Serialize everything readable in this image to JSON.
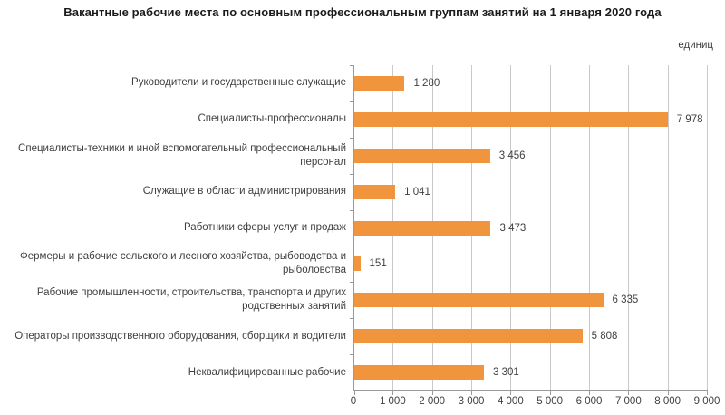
{
  "title": "Вакантные рабочие места по основным профессиональным группам занятий на 1 января 2020 года",
  "units_label": "единиц",
  "colors": {
    "bar": "#F0943D",
    "grid": "#C9C9C9",
    "axis": "#9A9A9A",
    "text": "#3F3F3F",
    "title": "#1A1A1A",
    "background": "#FFFFFF"
  },
  "chart_data": {
    "type": "bar",
    "orientation": "horizontal",
    "title": "Вакантные рабочие места по основным профессиональным группам занятий на 1 января 2020 года",
    "units": "единиц",
    "categories": [
      "Руководители и государственные служащие",
      "Специалисты-профессионалы",
      "Специалисты-техники и иной вспомогательный профессиональный персонал",
      "Служащие в области администрирования",
      "Работники сферы услуг и продаж",
      "Фермеры и рабочие сельского и лесного хозяйства, рыбоводства и рыболовства",
      "Рабочие промышленности, строительства, транспорта и других родственных занятий",
      "Операторы производственного оборудования, сборщики и водители",
      "Неквалифицированные рабочие"
    ],
    "values": [
      1280,
      7978,
      3456,
      1041,
      3473,
      151,
      6335,
      5808,
      3301
    ],
    "value_labels": [
      "1 280",
      "7 978",
      "3 456",
      "1 041",
      "3 473",
      "151",
      "6 335",
      "5 808",
      "3 301"
    ],
    "x_tick_labels": [
      "0",
      "1 000",
      "2 000",
      "3 000",
      "4 000",
      "5 000",
      "6 000",
      "7 000",
      "8 000",
      "9 000"
    ],
    "xlim": [
      0,
      9000
    ],
    "xlabel": "",
    "ylabel": "",
    "grid": true,
    "legend": false
  }
}
